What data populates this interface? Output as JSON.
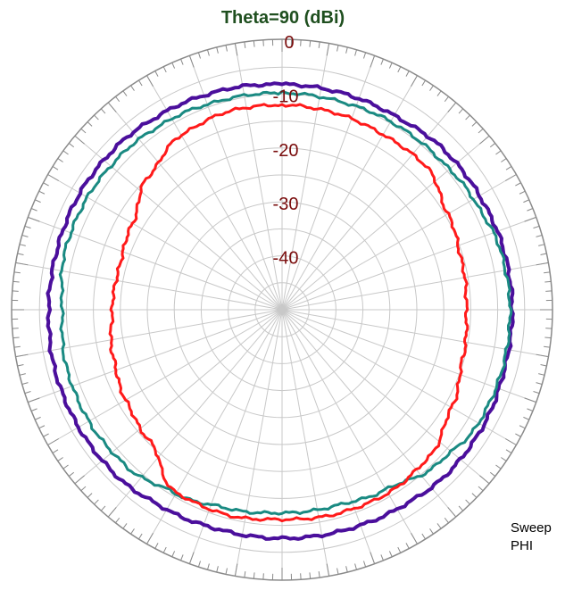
{
  "chart_data": {
    "type": "polar-line",
    "title": "Theta=90 (dBi)",
    "radial_ticks": [
      "0",
      "-10",
      "-20",
      "-30",
      "-40"
    ],
    "radial_range": [
      -50,
      0
    ],
    "angular_variable": "PHI",
    "angle_units": "deg",
    "angle_zero_direction": "top",
    "angle_direction": "clockwise",
    "grid": true,
    "sweep_label": {
      "line1": "Sweep",
      "line2": "PHI"
    },
    "colors": {
      "title": "#1f4f1f",
      "ring_labels": "#7a0c0c",
      "grid": "#c8c8c8",
      "outer_circle": "#8a8a8a"
    },
    "series": [
      {
        "color": "#4b0f9c",
        "angles": [
          0,
          15,
          30,
          45,
          60,
          75,
          90,
          105,
          120,
          135,
          150,
          165,
          180,
          195,
          210,
          225,
          240,
          255,
          270,
          285,
          300,
          315,
          330,
          345
        ],
        "values": [
          -8.2,
          -8.3,
          -8.4,
          -7.8,
          -7.7,
          -7.4,
          -7.3,
          -7.3,
          -6.9,
          -6.8,
          -7.3,
          -7.5,
          -7.6,
          -7.6,
          -7.2,
          -6.5,
          -6.4,
          -6.4,
          -6.7,
          -6.8,
          -6.7,
          -6.9,
          -7.4,
          -7.8
        ]
      },
      {
        "color": "#1a8a82",
        "angles": [
          0,
          15,
          30,
          45,
          60,
          75,
          90,
          105,
          120,
          135,
          150,
          165,
          180,
          195,
          210,
          225,
          240,
          255,
          270,
          285,
          300,
          315,
          330,
          345
        ],
        "values": [
          -9.8,
          -9.9,
          -9.7,
          -9.6,
          -9.0,
          -8.0,
          -7.7,
          -7.7,
          -7.9,
          -9.4,
          -11.5,
          -12.3,
          -12.3,
          -11.8,
          -10.6,
          -9.0,
          -8.6,
          -8.6,
          -9.2,
          -8.3,
          -8.3,
          -8.6,
          -9.1,
          -9.6
        ]
      },
      {
        "color": "#ff1a1a",
        "angles": [
          0,
          15,
          30,
          45,
          60,
          75,
          90,
          105,
          120,
          135,
          150,
          165,
          180,
          195,
          210,
          225,
          240,
          255,
          270,
          285,
          300,
          315,
          330,
          345
        ],
        "values": [
          -12.0,
          -12.2,
          -12.5,
          -12.3,
          -14.5,
          -15.5,
          -15.8,
          -15.3,
          -13.7,
          -11.4,
          -10.7,
          -10.8,
          -11.1,
          -10.6,
          -10.8,
          -15.4,
          -16.5,
          -17.5,
          -18.5,
          -18.8,
          -18.0,
          -15.0,
          -12.6,
          -11.9
        ]
      }
    ]
  }
}
